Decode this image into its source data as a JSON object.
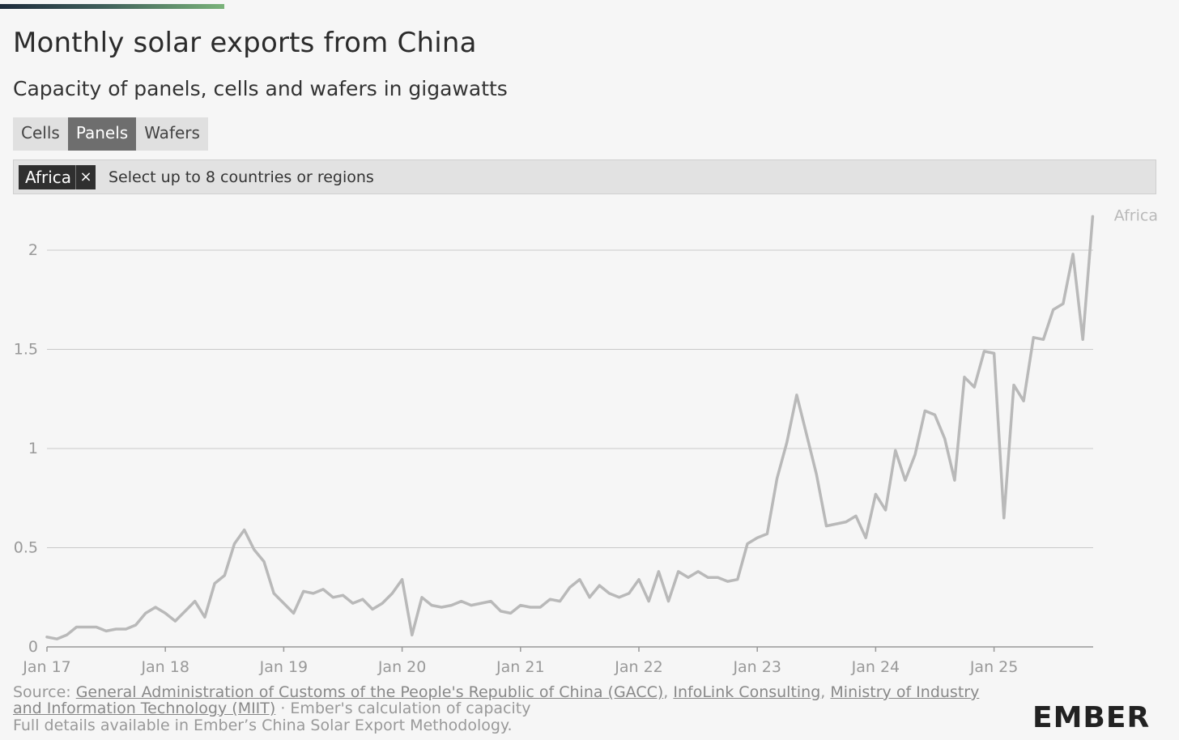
{
  "title": "Monthly solar exports from China",
  "subtitle": "Capacity of panels, cells and wafers in gigawatts",
  "tabs": [
    {
      "label": "Cells",
      "active": false
    },
    {
      "label": "Panels",
      "active": true
    },
    {
      "label": "Wafers",
      "active": false
    }
  ],
  "selector": {
    "chip_label": "Africa",
    "chip_remove": "×",
    "placeholder": "Select up to 8 countries or regions"
  },
  "source": {
    "prefix": "Source: ",
    "links": [
      "General Administration of Customs of the People's Republic of China (GACC)",
      "InfoLink Consulting",
      "Ministry of Industry and Information Technology (MIIT)"
    ],
    "sep": ", ",
    "suffix": " · Ember's calculation of capacity",
    "note": "Full details available in Ember’s China Solar Export Methodology."
  },
  "logo": "EMBER",
  "colors": {
    "series": "#b9b9b9",
    "grid": "#c9c9c9",
    "axis": "#999999",
    "background": "#f6f6f6"
  },
  "chart_data": {
    "type": "line",
    "title": "Monthly solar exports from China",
    "subtitle": "Capacity of panels, cells and wafers in gigawatts",
    "xlabel": "",
    "ylabel": "",
    "ylim": [
      0,
      2.2
    ],
    "yticks": [
      0,
      0.5,
      1,
      1.5,
      2
    ],
    "ytick_labels": [
      "0",
      "0.5",
      "1",
      "1.5",
      "2"
    ],
    "xticks": [
      "Jan 17",
      "Jan 18",
      "Jan 19",
      "Jan 20",
      "Jan 21",
      "Jan 22",
      "Jan 23",
      "Jan 24",
      "Jan 25"
    ],
    "x_start": "2017-01",
    "legend": "end-of-line label",
    "grid": true,
    "series": [
      {
        "name": "Africa",
        "values": [
          0.05,
          0.04,
          0.06,
          0.1,
          0.1,
          0.1,
          0.08,
          0.09,
          0.09,
          0.11,
          0.17,
          0.2,
          0.17,
          0.13,
          0.18,
          0.23,
          0.15,
          0.32,
          0.36,
          0.52,
          0.59,
          0.49,
          0.43,
          0.27,
          0.22,
          0.17,
          0.28,
          0.27,
          0.29,
          0.25,
          0.26,
          0.22,
          0.24,
          0.19,
          0.22,
          0.27,
          0.34,
          0.06,
          0.25,
          0.21,
          0.2,
          0.21,
          0.23,
          0.21,
          0.22,
          0.23,
          0.18,
          0.17,
          0.21,
          0.2,
          0.2,
          0.24,
          0.23,
          0.3,
          0.34,
          0.25,
          0.31,
          0.27,
          0.25,
          0.27,
          0.34,
          0.23,
          0.38,
          0.23,
          0.38,
          0.35,
          0.38,
          0.35,
          0.35,
          0.33,
          0.34,
          0.52,
          0.55,
          0.57,
          0.85,
          1.03,
          1.27,
          1.07,
          0.87,
          0.61,
          0.62,
          0.63,
          0.66,
          0.55,
          0.77,
          0.69,
          0.99,
          0.84,
          0.97,
          1.19,
          1.17,
          1.05,
          0.84,
          1.36,
          1.31,
          1.49,
          1.48,
          0.65,
          1.32,
          1.24,
          1.56,
          1.55,
          1.7,
          1.73,
          1.98,
          1.55,
          2.17
        ]
      }
    ]
  }
}
